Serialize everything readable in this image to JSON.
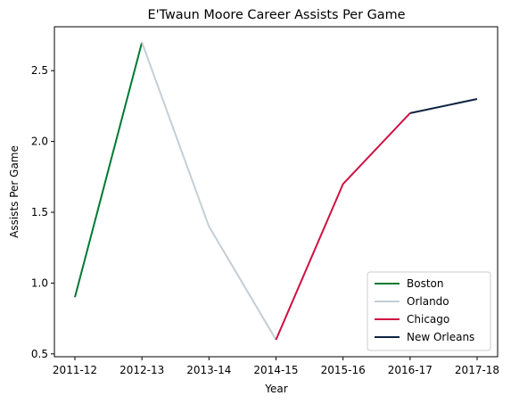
{
  "chart_data": {
    "type": "line",
    "title": "E'Twaun Moore Career Assists Per Game",
    "xlabel": "Year",
    "ylabel": "Assists Per Game",
    "categories": [
      "2011-12",
      "2012-13",
      "2013-14",
      "2014-15",
      "2015-16",
      "2016-17",
      "2017-18"
    ],
    "values": [
      0.9,
      2.7,
      1.4,
      0.6,
      1.7,
      2.2,
      2.3
    ],
    "ylim": [
      0.48,
      2.81
    ],
    "yticks": [
      "0.5",
      "1.0",
      "1.5",
      "2.0",
      "2.5"
    ],
    "grid": false,
    "legend_position": "lower right",
    "series": [
      {
        "name": "Boston",
        "color": "#007A33",
        "from": 0,
        "to": 1
      },
      {
        "name": "Orlando",
        "color": "#C4CED4",
        "from": 1,
        "to": 3
      },
      {
        "name": "Chicago",
        "color": "#CE1141",
        "from": 3,
        "to": 5
      },
      {
        "name": "New Orleans",
        "color": "#0C2340",
        "from": 5,
        "to": 6
      }
    ]
  }
}
